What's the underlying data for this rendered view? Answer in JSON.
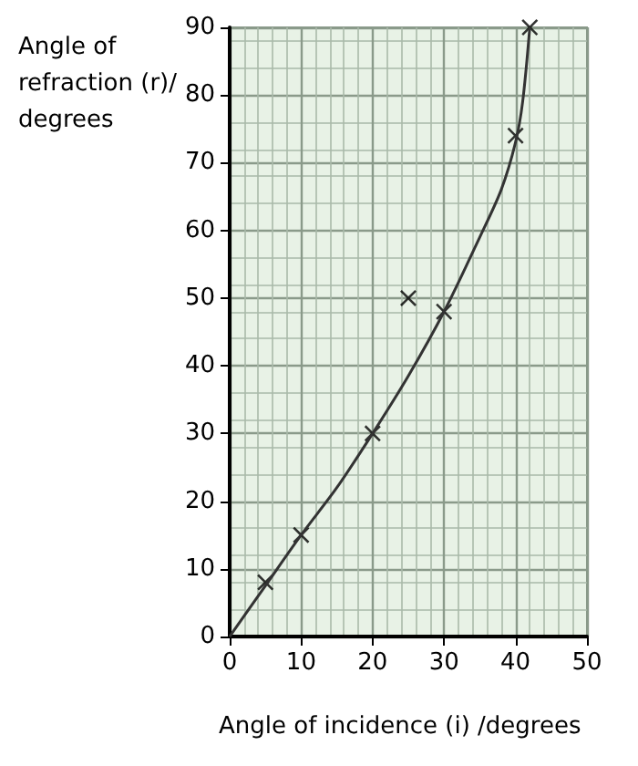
{
  "chart_data": {
    "type": "scatter",
    "xlabel": "Angle of incidence (i) /degrees",
    "ylabel": "Angle of refraction (r)/degrees",
    "series": [
      {
        "color": "#000000",
        "marker": "cross",
        "x": [
          5,
          10,
          20,
          25,
          30,
          40,
          42
        ],
        "values": [
          8,
          15,
          30,
          50,
          48,
          74,
          90
        ]
      },
      {
        "type": "line",
        "color": "#333333",
        "marker": "none",
        "x": [
          0,
          5,
          10,
          15,
          20,
          25,
          30,
          35,
          38,
          40,
          41,
          42
        ],
        "values": [
          0,
          7.5,
          15,
          22,
          30,
          38.5,
          48,
          59,
          66,
          73,
          79,
          90
        ]
      }
    ],
    "xlim": [
      0,
      50
    ],
    "ylim": [
      0,
      90
    ],
    "xticks": [
      0,
      10,
      20,
      30,
      40,
      50
    ],
    "yticks": [
      0,
      10,
      20,
      30,
      40,
      50,
      60,
      70,
      80,
      90
    ],
    "grid": true
  }
}
